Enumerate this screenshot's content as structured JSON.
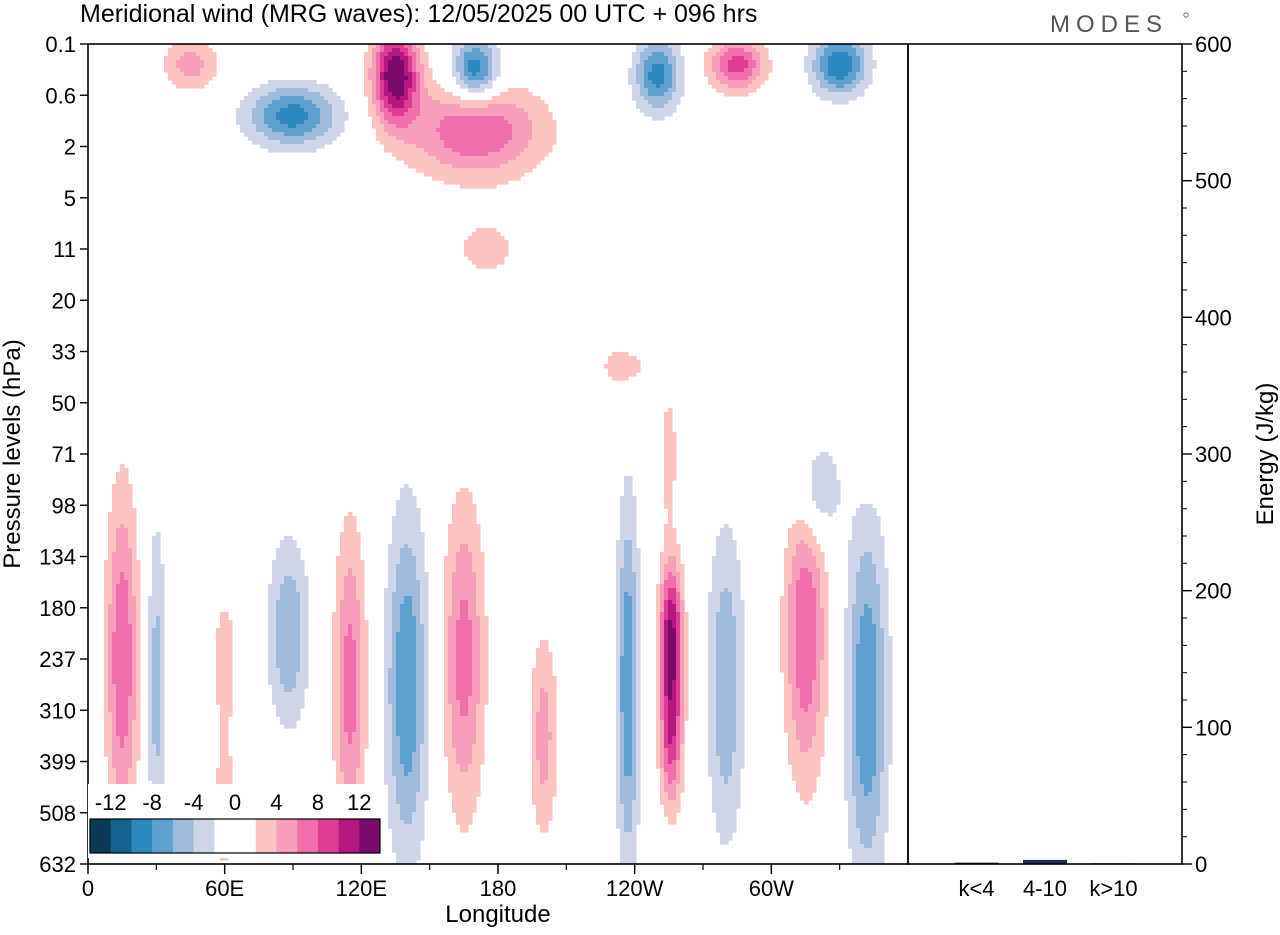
{
  "header": {
    "title": "Meridional wind (MRG waves):  12/05/2025  00 UTC  + 096 hrs",
    "brand": "MODES"
  },
  "chart_data": [
    {
      "type": "heatmap",
      "title": "Meridional wind (MRG waves):  12/05/2025  00 UTC  + 096 hrs",
      "xlabel": "Longitude",
      "ylabel": "Pressure levels (hPa)",
      "x_ticks": [
        "0",
        "60E",
        "120E",
        "180",
        "120W",
        "60W"
      ],
      "x_tick_degrees": [
        0,
        60,
        120,
        180,
        240,
        300
      ],
      "xlim": [
        0,
        360
      ],
      "y_ticks": [
        "0.1",
        "0.6",
        "2",
        "5",
        "11",
        "20",
        "33",
        "50",
        "71",
        "98",
        "134",
        "180",
        "237",
        "310",
        "399",
        "508",
        "632"
      ],
      "y_scale": "model-level index (non-linear pressure)",
      "colorbar": {
        "tick_labels": [
          "-12",
          "-8",
          "-4",
          "0",
          "4",
          "8",
          "12"
        ],
        "levels": [
          -14,
          -12,
          -10,
          -8,
          -6,
          -4,
          -2,
          0,
          2,
          4,
          6,
          8,
          10,
          12,
          14
        ],
        "colors": [
          "#0b3a58",
          "#13628f",
          "#2b87bd",
          "#5d9fce",
          "#9db9dc",
          "#cfd5e8",
          "#ffffff",
          "#ffffff",
          "#fbc4c2",
          "#f79fba",
          "#ee6fa9",
          "#dd3b95",
          "#b5167f",
          "#7a0b6d"
        ],
        "placement": "bottom-left"
      },
      "features": [
        {
          "x": 15,
          "y": 12.0,
          "rx": 7,
          "ry": 3.2,
          "peak": 8
        },
        {
          "x": 30,
          "y": 12.5,
          "rx": 4,
          "ry": 3.2,
          "peak": -5
        },
        {
          "x": 60,
          "y": 12.0,
          "rx": 6,
          "ry": 1.5,
          "peak": 3
        },
        {
          "x": 60,
          "y": 15.0,
          "rx": 6,
          "ry": 1.5,
          "peak": 3
        },
        {
          "x": 88,
          "y": 11.5,
          "rx": 9,
          "ry": 1.8,
          "peak": -6
        },
        {
          "x": 115,
          "y": 12.5,
          "rx": 7,
          "ry": 3.0,
          "peak": 7
        },
        {
          "x": 140,
          "y": 12.5,
          "rx": 9,
          "ry": 3.3,
          "peak": -8
        },
        {
          "x": 165,
          "y": 12.0,
          "rx": 9,
          "ry": 3.0,
          "peak": 7
        },
        {
          "x": 200,
          "y": 13.5,
          "rx": 6,
          "ry": 2.0,
          "peak": 5
        },
        {
          "x": 237,
          "y": 12.5,
          "rx": 5,
          "ry": 3.5,
          "peak": -8
        },
        {
          "x": 256,
          "y": 11.5,
          "rx": 5,
          "ry": 1.4,
          "peak": 12
        },
        {
          "x": 256,
          "y": 13.5,
          "rx": 5,
          "ry": 1.4,
          "peak": 9
        },
        {
          "x": 280,
          "y": 12.5,
          "rx": 8,
          "ry": 3.0,
          "peak": -6
        },
        {
          "x": 315,
          "y": 11.5,
          "rx": 9,
          "ry": 2.8,
          "peak": 8
        },
        {
          "x": 342,
          "y": 12.8,
          "rx": 9,
          "ry": 3.5,
          "peak": -8
        },
        {
          "x": 320,
          "y": 8.7,
          "rx": 10,
          "ry": 1.0,
          "peak": -5
        },
        {
          "x": 342,
          "y": 7.8,
          "rx": 8,
          "ry": 0.9,
          "peak": 2.5
        },
        {
          "x": 255,
          "y": 8.0,
          "rx": 4,
          "ry": 1.4,
          "peak": 3
        },
        {
          "x": 235,
          "y": 6.3,
          "rx": 12,
          "ry": 0.5,
          "peak": 3
        },
        {
          "x": 175,
          "y": 4.0,
          "rx": 20,
          "ry": 0.8,
          "peak": 2.5
        },
        {
          "x": 135,
          "y": 0.6,
          "rx": 10,
          "ry": 0.9,
          "peak": 14
        },
        {
          "x": 90,
          "y": 1.4,
          "rx": 20,
          "ry": 0.6,
          "peak": -9
        },
        {
          "x": 170,
          "y": 1.7,
          "rx": 30,
          "ry": 0.9,
          "peak": 8
        },
        {
          "x": 170,
          "y": 0.5,
          "rx": 10,
          "ry": 0.6,
          "peak": -10
        },
        {
          "x": 250,
          "y": 0.6,
          "rx": 10,
          "ry": 0.7,
          "peak": -9
        },
        {
          "x": 285,
          "y": 0.4,
          "rx": 12,
          "ry": 0.5,
          "peak": 9
        },
        {
          "x": 330,
          "y": 0.4,
          "rx": 12,
          "ry": 0.6,
          "peak": -10
        },
        {
          "x": 45,
          "y": 0.4,
          "rx": 12,
          "ry": 0.5,
          "peak": 5
        }
      ]
    },
    {
      "type": "bar",
      "categories": [
        "k<4",
        "4-10",
        "k>10"
      ],
      "values": [
        1,
        3,
        0.5
      ],
      "ylabel": "Energy (J/kg)",
      "ylim": [
        0,
        600
      ],
      "y_ticks": [
        0,
        100,
        200,
        300,
        400,
        500,
        600
      ],
      "bar_color": "#1f2a55"
    }
  ]
}
